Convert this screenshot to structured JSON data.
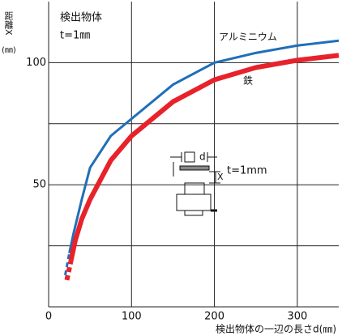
{
  "chart_data": {
    "type": "line",
    "ylabel": "距離X",
    "yunit": "(㎜)",
    "xlabel": "検出物体の一辺の長さd(㎜)",
    "note_title": "検出物体",
    "note_sub": "t=1㎜",
    "diagram_label": "t=1mm",
    "xlim": [
      0,
      350
    ],
    "ylim": [
      0,
      125
    ],
    "xticks": [
      0,
      100,
      200,
      300
    ],
    "yticks": [
      50,
      100
    ],
    "ygrid": [
      25,
      50,
      75,
      100
    ],
    "dash_end_index": 1,
    "series": [
      {
        "name": "アルミニウム",
        "color": "#1f6fb8",
        "width": 3,
        "x": [
          20,
          25,
          30,
          40,
          50,
          75,
          100,
          150,
          200,
          250,
          300,
          350
        ],
        "values": [
          13,
          22,
          30,
          44,
          57,
          70,
          77,
          91,
          100,
          104,
          107,
          109
        ]
      },
      {
        "name": "鉄",
        "color": "#e8222a",
        "width": 6,
        "x": [
          22,
          27,
          32,
          40,
          50,
          75,
          100,
          150,
          200,
          250,
          300,
          350
        ],
        "values": [
          11,
          19,
          27,
          36,
          44,
          60,
          70,
          84,
          93,
          98,
          101,
          103
        ]
      }
    ]
  }
}
